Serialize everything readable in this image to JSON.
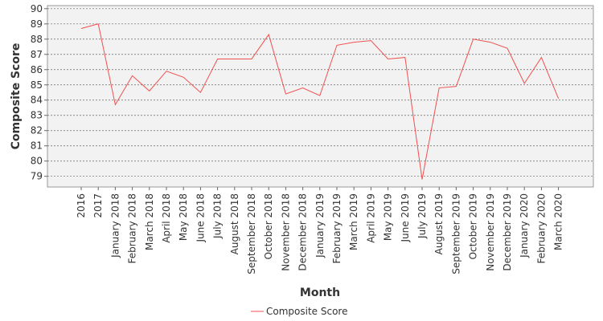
{
  "chart_data": {
    "type": "line",
    "x_label": "Month",
    "y_label": "Composite Score",
    "categories": [
      "2016",
      "2017",
      "January 2018",
      "February 2018",
      "March 2018",
      "April 2018",
      "May 2018",
      "June 2018",
      "July 2018",
      "August 2018",
      "September 2018",
      "October 2018",
      "November 2018",
      "December 2018",
      "January 2019",
      "February 2019",
      "March 2019",
      "April 2019",
      "May 2019",
      "June 2019",
      "July 2019",
      "August 2019",
      "September 2019",
      "October 2019",
      "November 2019",
      "December 2019",
      "January 2020",
      "February 2020",
      "March 2020"
    ],
    "series": [
      {
        "name": "Composite Score",
        "color": "#f05050",
        "values": [
          88.7,
          89.0,
          83.7,
          85.6,
          84.6,
          85.9,
          85.5,
          84.5,
          86.7,
          86.7,
          86.7,
          88.3,
          84.4,
          84.8,
          84.3,
          87.6,
          87.8,
          87.9,
          86.7,
          86.8,
          78.8,
          84.8,
          84.9,
          88.0,
          87.8,
          87.4,
          85.1,
          86.8,
          84.1
        ]
      }
    ],
    "ylim": [
      78.3,
      90.2
    ],
    "yticks": [
      79,
      80,
      81,
      82,
      83,
      84,
      85,
      86,
      87,
      88,
      89,
      90
    ],
    "grid": true
  }
}
